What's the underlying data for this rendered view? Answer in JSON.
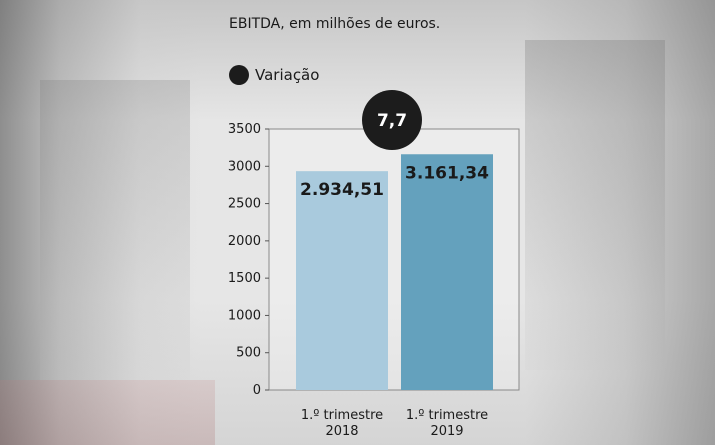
{
  "chart_data": {
    "type": "bar",
    "title": "EBITDA, em milhões de euros.",
    "categories": [
      [
        "1.º trimestre",
        "2018"
      ],
      [
        "1.º trimestre",
        "2019"
      ]
    ],
    "values": [
      2934.51,
      3161.34
    ],
    "value_labels": [
      "2.934,51",
      "3.161,34"
    ],
    "bar_colors": [
      "#a9cadd",
      "#64a1bd"
    ],
    "ylim": [
      0,
      3500
    ],
    "yticks": [
      0,
      500,
      1000,
      1500,
      2000,
      2500,
      3000,
      3500
    ],
    "legend": {
      "label": "Variação",
      "color": "#1c1c1c",
      "placement": "top-left"
    },
    "annotation": {
      "text": "7,7",
      "color": "#1c1c1c"
    },
    "grid": false
  }
}
